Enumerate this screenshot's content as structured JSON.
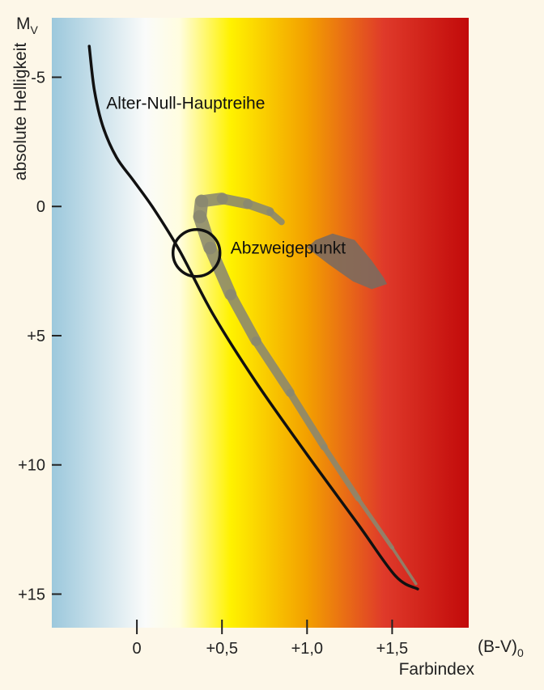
{
  "chart_data": {
    "type": "line",
    "title": "",
    "xlabel": "Farbindex",
    "xunit": "(B-V)",
    "xunit_sub": "0",
    "ylabel": "absolute Helligkeit",
    "yunit": "M",
    "yunit_sub": "V",
    "xlim": [
      -0.5,
      1.95
    ],
    "ylim": [
      16.3,
      -7.3
    ],
    "x_ticks": [
      {
        "value": 0,
        "label": "0"
      },
      {
        "value": 0.5,
        "label": "+0,5"
      },
      {
        "value": 1.0,
        "label": "+1,0"
      },
      {
        "value": 1.5,
        "label": "+1,5"
      }
    ],
    "y_ticks": [
      {
        "value": -5,
        "label": "-5"
      },
      {
        "value": 0,
        "label": "0"
      },
      {
        "value": 5,
        "label": "+5"
      },
      {
        "value": 10,
        "label": "+10"
      },
      {
        "value": 15,
        "label": "+15"
      }
    ],
    "background_gradient": [
      {
        "x": -0.5,
        "color": "#9cc8dc"
      },
      {
        "x": 0.05,
        "color": "#fafbfa"
      },
      {
        "x": 0.25,
        "color": "#fffde0"
      },
      {
        "x": 0.55,
        "color": "#fff200"
      },
      {
        "x": 1.0,
        "color": "#f3a000"
      },
      {
        "x": 1.45,
        "color": "#df3a2a"
      },
      {
        "x": 1.95,
        "color": "#c20a0a"
      }
    ],
    "series": [
      {
        "name": "Alter-Null-Hauptreihe",
        "kind": "zams",
        "color": "#111111",
        "points": [
          [
            -0.28,
            -6.2
          ],
          [
            -0.25,
            -4.5
          ],
          [
            -0.2,
            -3.1
          ],
          [
            -0.12,
            -1.9
          ],
          [
            -0.02,
            -1.0
          ],
          [
            0.1,
            0.1
          ],
          [
            0.25,
            1.7
          ],
          [
            0.45,
            4.2
          ],
          [
            0.7,
            6.8
          ],
          [
            1.0,
            9.6
          ],
          [
            1.3,
            12.3
          ],
          [
            1.52,
            14.3
          ],
          [
            1.65,
            14.8
          ]
        ]
      },
      {
        "name": "",
        "kind": "cluster-sequence",
        "color": "#8a8870",
        "points": [
          [
            1.64,
            14.6
          ],
          [
            1.5,
            13.2
          ],
          [
            1.3,
            11.3
          ],
          [
            1.1,
            9.3
          ],
          [
            0.9,
            7.2
          ],
          [
            0.7,
            5.2
          ],
          [
            0.55,
            3.4
          ],
          [
            0.43,
            1.6
          ],
          [
            0.37,
            0.4
          ],
          [
            0.38,
            -0.2
          ],
          [
            0.5,
            -0.3
          ],
          [
            0.65,
            -0.1
          ],
          [
            0.78,
            0.2
          ],
          [
            0.85,
            0.6
          ]
        ],
        "widths": [
          3,
          4,
          6,
          8,
          10,
          12,
          14,
          16,
          17,
          16,
          14,
          12,
          10,
          6
        ]
      }
    ],
    "giant_branch": {
      "color": "#7c6a5e",
      "points": [
        [
          1.05,
          1.3
        ],
        [
          1.15,
          1.05
        ],
        [
          1.28,
          1.3
        ],
        [
          1.38,
          2.1
        ],
        [
          1.45,
          2.75
        ],
        [
          1.47,
          3.0
        ],
        [
          1.38,
          3.2
        ],
        [
          1.27,
          2.9
        ],
        [
          1.13,
          2.25
        ],
        [
          1.0,
          1.6
        ]
      ]
    },
    "turnoff_marker": {
      "x": 0.35,
      "y": 1.8,
      "label": "Abzweigepunkt"
    },
    "annotations": [
      {
        "text": "Alter-Null-Hauptreihe",
        "x": -0.18,
        "y": -4.0
      },
      {
        "text": "Abzweigepunkt",
        "x": 0.55,
        "y": 1.6
      }
    ]
  }
}
